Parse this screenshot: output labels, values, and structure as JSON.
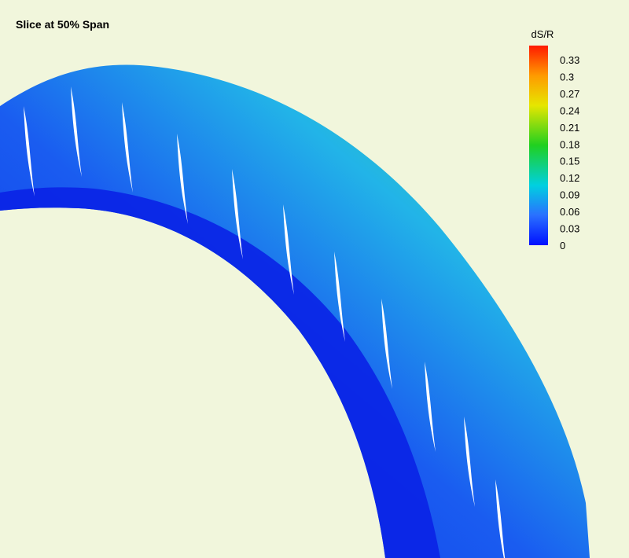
{
  "title": "Slice at 50% Span",
  "colorbar": {
    "label": "dS/R",
    "ticks": [
      "0.33",
      "0.3",
      "0.27",
      "0.24",
      "0.21",
      "0.18",
      "0.15",
      "0.12",
      "0.09",
      "0.06",
      "0.03",
      "0"
    ]
  }
}
